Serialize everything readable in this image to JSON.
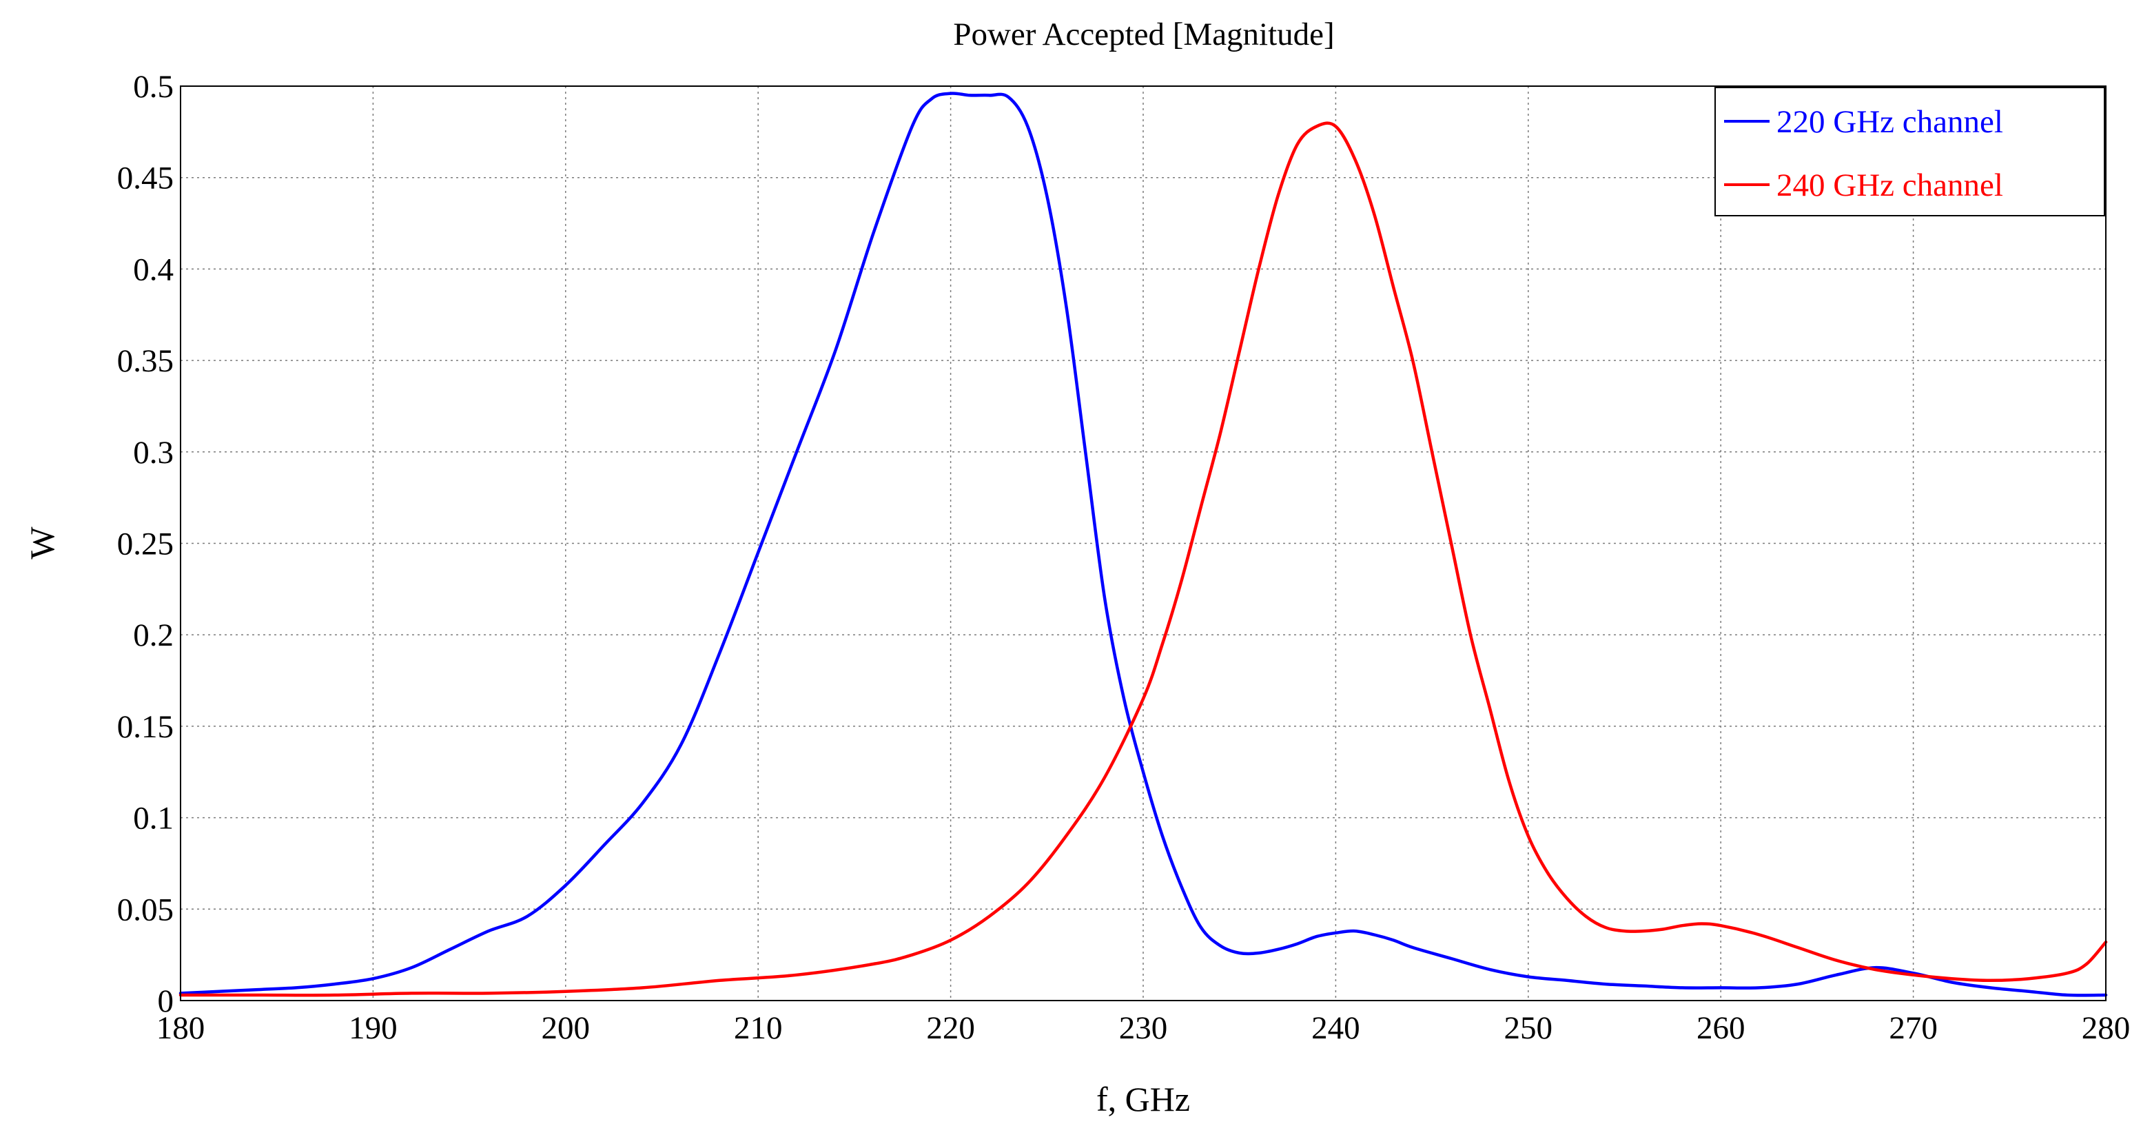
{
  "chart_data": {
    "type": "line",
    "title": "Power Accepted [Magnitude]",
    "xlabel": "f, GHz",
    "ylabel": "W",
    "xlim": [
      180,
      280
    ],
    "ylim": [
      0,
      0.5
    ],
    "xticks": [
      180,
      190,
      200,
      210,
      220,
      230,
      240,
      250,
      260,
      270,
      280
    ],
    "yticks": [
      0,
      0.05,
      0.1,
      0.15,
      0.2,
      0.25,
      0.3,
      0.35,
      0.4,
      0.45,
      0.5
    ],
    "xtick_labels": [
      "180",
      "190",
      "200",
      "210",
      "220",
      "230",
      "240",
      "250",
      "260",
      "270",
      "280"
    ],
    "ytick_labels": [
      "0",
      "0.05",
      "0.1",
      "0.15",
      "0.2",
      "0.25",
      "0.3",
      "0.35",
      "0.4",
      "0.45",
      "0.5"
    ],
    "grid": true,
    "legend_position": "top-right",
    "series": [
      {
        "name": "220 GHz channel",
        "color": "#0000ff",
        "x": [
          180,
          182,
          184,
          186,
          188,
          190,
          192,
          194,
          196,
          198,
          200,
          202,
          204,
          206,
          208,
          210,
          212,
          214,
          216,
          218,
          219,
          220,
          221,
          222,
          223,
          224,
          225,
          226,
          227,
          228,
          229,
          230,
          231,
          232,
          233,
          234,
          235,
          236,
          237,
          238,
          239,
          240,
          241,
          242,
          243,
          244,
          246,
          248,
          250,
          252,
          254,
          256,
          258,
          260,
          262,
          264,
          266,
          268,
          270,
          272,
          274,
          276,
          278,
          280
        ],
        "y": [
          0.004,
          0.005,
          0.006,
          0.007,
          0.009,
          0.012,
          0.018,
          0.028,
          0.038,
          0.046,
          0.063,
          0.085,
          0.108,
          0.14,
          0.19,
          0.245,
          0.3,
          0.355,
          0.42,
          0.478,
          0.493,
          0.496,
          0.495,
          0.495,
          0.494,
          0.478,
          0.44,
          0.38,
          0.3,
          0.22,
          0.165,
          0.125,
          0.09,
          0.062,
          0.04,
          0.03,
          0.026,
          0.026,
          0.028,
          0.031,
          0.035,
          0.037,
          0.038,
          0.036,
          0.033,
          0.029,
          0.023,
          0.017,
          0.013,
          0.011,
          0.009,
          0.008,
          0.007,
          0.007,
          0.007,
          0.009,
          0.014,
          0.018,
          0.015,
          0.01,
          0.007,
          0.005,
          0.003,
          0.003
        ]
      },
      {
        "name": "240 GHz channel",
        "color": "#ff0000",
        "x": [
          180,
          184,
          188,
          192,
          196,
          200,
          204,
          208,
          212,
          216,
          218,
          220,
          222,
          224,
          226,
          228,
          230,
          231,
          232,
          233,
          234,
          235,
          236,
          237,
          238,
          239,
          240,
          241,
          242,
          243,
          244,
          245,
          246,
          247,
          248,
          249,
          250,
          251,
          252,
          253,
          254,
          255,
          256,
          257,
          258,
          259,
          260,
          262,
          264,
          266,
          268,
          270,
          272,
          274,
          276,
          278,
          279,
          280
        ],
        "y": [
          0.003,
          0.003,
          0.003,
          0.004,
          0.004,
          0.005,
          0.007,
          0.011,
          0.014,
          0.02,
          0.025,
          0.033,
          0.046,
          0.064,
          0.09,
          0.122,
          0.165,
          0.195,
          0.23,
          0.27,
          0.31,
          0.355,
          0.4,
          0.44,
          0.468,
          0.478,
          0.478,
          0.46,
          0.43,
          0.39,
          0.35,
          0.3,
          0.25,
          0.2,
          0.16,
          0.12,
          0.09,
          0.07,
          0.056,
          0.046,
          0.04,
          0.038,
          0.038,
          0.039,
          0.041,
          0.042,
          0.041,
          0.036,
          0.029,
          0.022,
          0.017,
          0.014,
          0.012,
          0.011,
          0.012,
          0.015,
          0.02,
          0.032
        ]
      }
    ]
  }
}
